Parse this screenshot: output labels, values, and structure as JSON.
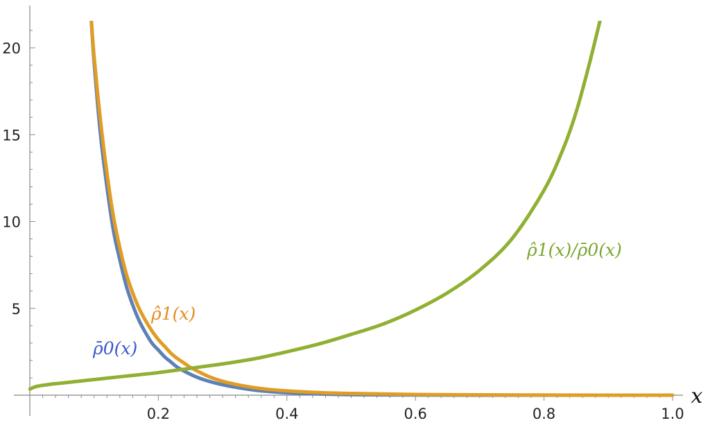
{
  "chart_data": {
    "type": "line",
    "xlabel": "x",
    "ylabel": "",
    "xlim": [
      0.0,
      1.0
    ],
    "ylim": [
      0,
      22
    ],
    "x_ticks": [
      "0.2",
      "0.4",
      "0.6",
      "0.8",
      "1.0"
    ],
    "y_ticks": [
      "5",
      "10",
      "15",
      "20"
    ],
    "grid": false,
    "series": [
      {
        "name": "ρ̄0(x)",
        "color": "#5e81b5",
        "x": [
          0.095,
          0.1,
          0.11,
          0.12,
          0.13,
          0.14,
          0.15,
          0.16,
          0.17,
          0.18,
          0.19,
          0.2,
          0.21,
          0.22,
          0.23,
          0.25,
          0.27,
          0.3,
          0.33,
          0.36,
          0.4,
          0.45,
          0.5,
          0.6,
          0.7,
          0.8,
          0.9,
          1.0
        ],
        "values": [
          22.0,
          19.2,
          15.0,
          12.0,
          9.5,
          7.8,
          6.3,
          5.2,
          4.3,
          3.6,
          3.0,
          2.6,
          2.2,
          1.9,
          1.6,
          1.2,
          0.9,
          0.6,
          0.4,
          0.25,
          0.14,
          0.07,
          0.03,
          0.01,
          0.0,
          0.0,
          0.0,
          0.0
        ]
      },
      {
        "name": "ρ̂1(x)",
        "color": "#e19c24",
        "x": [
          0.095,
          0.1,
          0.11,
          0.12,
          0.13,
          0.14,
          0.15,
          0.16,
          0.17,
          0.18,
          0.19,
          0.2,
          0.21,
          0.22,
          0.23,
          0.24,
          0.25,
          0.26,
          0.28,
          0.3,
          0.33,
          0.36,
          0.4,
          0.45,
          0.5,
          0.6,
          0.7,
          0.8,
          0.9,
          1.0
        ],
        "values": [
          22.0,
          19.5,
          15.8,
          12.8,
          10.3,
          8.5,
          7.0,
          5.9,
          5.0,
          4.3,
          3.7,
          3.2,
          2.8,
          2.4,
          2.1,
          1.85,
          1.6,
          1.4,
          1.05,
          0.8,
          0.55,
          0.38,
          0.25,
          0.15,
          0.1,
          0.04,
          0.02,
          0.01,
          0.0,
          0.0
        ]
      },
      {
        "name": "ρ̂1(x)/ρ̄0(x)",
        "color": "#8fb032",
        "x": [
          0.0,
          0.01,
          0.03,
          0.05,
          0.1,
          0.15,
          0.2,
          0.25,
          0.3,
          0.35,
          0.4,
          0.45,
          0.5,
          0.55,
          0.6,
          0.65,
          0.7,
          0.75,
          0.8,
          0.83,
          0.85,
          0.87,
          0.89
        ],
        "values": [
          0.35,
          0.5,
          0.62,
          0.7,
          0.9,
          1.1,
          1.3,
          1.55,
          1.8,
          2.1,
          2.5,
          2.95,
          3.5,
          4.1,
          4.9,
          5.9,
          7.2,
          9.0,
          11.8,
          14.2,
          16.3,
          19.0,
          22.0
        ]
      }
    ]
  }
}
